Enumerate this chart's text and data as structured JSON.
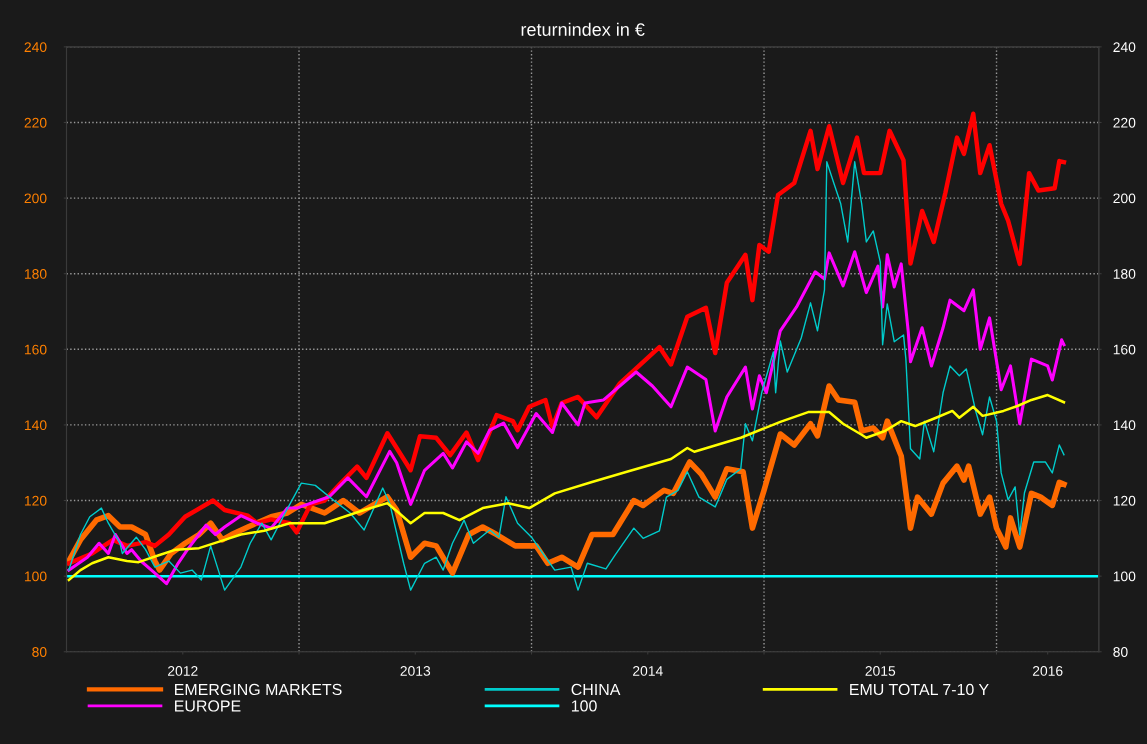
{
  "chart_data": {
    "type": "line",
    "title": "returnindex in €",
    "xlim": [
      2012,
      2016.44
    ],
    "xticks": [
      {
        "value": 2013,
        "label": null
      },
      {
        "value": 2014,
        "label": null
      },
      {
        "value": 2015,
        "label": null
      },
      {
        "value": 2016,
        "label": null
      },
      {
        "value": 2012.5,
        "label": "2012"
      },
      {
        "value": 2013.5,
        "label": "2013"
      },
      {
        "value": 2014.5,
        "label": "2014"
      },
      {
        "value": 2015.5,
        "label": "2015"
      },
      {
        "value": 2016.22,
        "label": "2016"
      }
    ],
    "ylim": [
      80,
      240
    ],
    "yticks": [
      80,
      100,
      120,
      140,
      160,
      180,
      200,
      220,
      240
    ],
    "y2lim": [
      80,
      240
    ],
    "y2ticks": [
      80,
      100,
      120,
      140,
      160,
      180,
      200,
      220,
      240
    ],
    "grid": true,
    "legend": "bottom",
    "line_style": "solid",
    "marker": "none",
    "series": [
      {
        "name": "EMERGING MARKETS",
        "color": "#ff6a00",
        "x": [
          2012.01,
          2012.06,
          2012.13,
          2012.18,
          2012.23,
          2012.28,
          2012.34,
          2012.38,
          2012.4,
          2012.45,
          2012.51,
          2012.57,
          2012.62,
          2012.67,
          2012.71,
          2012.78,
          2012.88,
          2012.95,
          2013.01,
          2013.11,
          2013.19,
          2013.26,
          2013.38,
          2013.42,
          2013.48,
          2013.54,
          2013.59,
          2013.66,
          2013.73,
          2013.79,
          2013.85,
          2013.93,
          2014.02,
          2014.07,
          2014.13,
          2014.2,
          2014.26,
          2014.35,
          2014.44,
          2014.48,
          2014.57,
          2014.61,
          2014.68,
          2014.73,
          2014.79,
          2014.84,
          2014.91,
          2014.95,
          2015.0,
          2015.07,
          2015.13,
          2015.2,
          2015.23,
          2015.28,
          2015.32,
          2015.39,
          2015.42,
          2015.47,
          2015.51,
          2015.53,
          2015.59,
          2015.63,
          2015.66,
          2015.72,
          2015.77,
          2015.83,
          2015.86,
          2015.88,
          2015.93,
          2015.97,
          2016.0,
          2016.04,
          2016.06,
          2016.1,
          2016.15,
          2016.19,
          2016.24,
          2016.27,
          2016.29
        ],
        "values": [
          104,
          109.6,
          114.9,
          116,
          113,
          113,
          111,
          104,
          101.6,
          106,
          108.7,
          111,
          114,
          109.6,
          111,
          113,
          115.7,
          116.7,
          119,
          116.7,
          120,
          116.7,
          121,
          117.5,
          105,
          108.7,
          108,
          100.8,
          111,
          113,
          111,
          108,
          108,
          103.4,
          105,
          102.4,
          111,
          111,
          120,
          118.7,
          122.7,
          121.9,
          130.2,
          127,
          120.9,
          128.4,
          127.6,
          112.7,
          122.7,
          137.6,
          134.7,
          140.3,
          137.1,
          150.3,
          146.6,
          146,
          138.4,
          139.2,
          136.6,
          141,
          131.8,
          112.7,
          120.9,
          116.4,
          124.6,
          129.1,
          125.4,
          129.1,
          116.4,
          120.9,
          112.7,
          107.7,
          115.4,
          107.7,
          121.9,
          120.9,
          118.7,
          124.8,
          124.3
        ]
      },
      {
        "name": "EUROPE",
        "color": "#ff00ff",
        "x": [
          2012.01,
          2012.09,
          2012.14,
          2012.18,
          2012.21,
          2012.26,
          2012.28,
          2012.32,
          2012.38,
          2012.43,
          2012.48,
          2012.52,
          2012.6,
          2012.64,
          2012.68,
          2012.75,
          2012.82,
          2012.88,
          2012.95,
          2012.99,
          2013.13,
          2013.21,
          2013.29,
          2013.39,
          2013.42,
          2013.48,
          2013.54,
          2013.62,
          2013.66,
          2013.72,
          2013.77,
          2013.82,
          2013.88,
          2013.94,
          2014.02,
          2014.09,
          2014.13,
          2014.2,
          2014.23,
          2014.31,
          2014.45,
          2014.52,
          2014.6,
          2014.67,
          2014.75,
          2014.79,
          2014.84,
          2014.92,
          2014.95,
          2014.98,
          2015.01,
          2015.07,
          2015.14,
          2015.22,
          2015.26,
          2015.28,
          2015.34,
          2015.39,
          2015.44,
          2015.49,
          2015.51,
          2015.53,
          2015.56,
          2015.59,
          2015.62,
          2015.63,
          2015.68,
          2015.72,
          2015.77,
          2015.8,
          2015.86,
          2015.9,
          2015.93,
          2015.97,
          2016.02,
          2016.06,
          2016.1,
          2016.15,
          2016.22,
          2016.24,
          2016.28,
          2016.29
        ],
        "values": [
          101.6,
          105,
          108.7,
          106,
          111,
          106,
          107,
          104,
          100.8,
          98,
          103.4,
          107,
          113.5,
          111,
          113,
          116,
          114,
          112.7,
          118,
          118,
          121,
          126,
          121,
          133,
          130,
          119,
          128,
          132.5,
          128.6,
          135.5,
          132.5,
          138.6,
          140.5,
          134,
          143,
          138,
          145.8,
          140,
          145.8,
          146.6,
          154,
          150.3,
          144.8,
          155.3,
          152,
          138.4,
          147.4,
          155.3,
          144.2,
          153,
          148.5,
          164.9,
          171.2,
          180.5,
          178.6,
          185.5,
          176.8,
          185.8,
          175,
          182,
          171.2,
          185,
          176.5,
          182.6,
          164.9,
          156.7,
          165.7,
          155.6,
          165.7,
          173,
          170.2,
          175.7,
          160,
          168.3,
          149.3,
          155.6,
          140.3,
          157.4,
          155.6,
          151.9,
          162.5,
          161.2
        ]
      },
      {
        "name": "CHINA",
        "color": "#00cccc",
        "x": [
          2012.01,
          2012.06,
          2012.1,
          2012.15,
          2012.18,
          2012.23,
          2012.24,
          2012.3,
          2012.34,
          2012.38,
          2012.44,
          2012.49,
          2012.54,
          2012.58,
          2012.62,
          2012.68,
          2012.75,
          2012.79,
          2012.84,
          2012.88,
          2012.94,
          2013.01,
          2013.07,
          2013.15,
          2013.22,
          2013.28,
          2013.36,
          2013.39,
          2013.45,
          2013.48,
          2013.54,
          2013.59,
          2013.62,
          2013.66,
          2013.71,
          2013.75,
          2013.82,
          2013.86,
          2013.89,
          2013.94,
          2014.0,
          2014.06,
          2014.1,
          2014.17,
          2014.2,
          2014.24,
          2014.32,
          2014.36,
          2014.44,
          2014.48,
          2014.55,
          2014.58,
          2014.63,
          2014.67,
          2014.72,
          2014.79,
          2014.84,
          2014.9,
          2014.92,
          2014.95,
          2014.99,
          2015.04,
          2015.05,
          2015.07,
          2015.1,
          2015.16,
          2015.2,
          2015.23,
          2015.26,
          2015.27,
          2015.3,
          2015.33,
          2015.36,
          2015.39,
          2015.42,
          2015.44,
          2015.47,
          2015.5,
          2015.51,
          2015.53,
          2015.56,
          2015.6,
          2015.61,
          2015.63,
          2015.67,
          2015.69,
          2015.73,
          2015.77,
          2015.8,
          2015.84,
          2015.87,
          2015.91,
          2015.94,
          2015.97,
          2016.0,
          2016.02,
          2016.05,
          2016.08,
          2016.1,
          2016.12,
          2016.16,
          2016.21,
          2016.24,
          2016.27,
          2016.29
        ],
        "values": [
          101.6,
          111,
          115.7,
          118,
          114,
          108.7,
          106,
          110.3,
          107,
          102.4,
          104,
          100.8,
          101.6,
          99,
          108,
          96.3,
          102.4,
          108.7,
          114,
          109.6,
          116.7,
          124.6,
          124,
          120,
          116.7,
          112.2,
          123.3,
          119.3,
          103.4,
          96.3,
          103.4,
          105,
          101.6,
          108.7,
          114.8,
          108.7,
          112.2,
          110.3,
          121,
          114,
          110.3,
          105,
          101.6,
          102.4,
          96.3,
          103.4,
          101.9,
          105.6,
          112.7,
          110,
          112,
          120.9,
          122.7,
          127.6,
          120.9,
          118.3,
          125.6,
          128.4,
          140.3,
          135.8,
          148.5,
          159.3,
          148.5,
          162.2,
          154,
          163,
          172.3,
          164.9,
          175.7,
          209.6,
          204,
          198.5,
          188.4,
          209.6,
          198.5,
          188.4,
          191.3,
          183.1,
          161.2,
          172,
          162,
          163.8,
          157.5,
          133.7,
          131,
          141,
          132.9,
          148.5,
          155.6,
          153,
          154.8,
          143.7,
          137.4,
          147.4,
          141,
          127.3,
          120.2,
          123.6,
          110.9,
          122,
          130.2,
          130.2,
          127.3,
          134.7,
          132.1
        ]
      },
      {
        "name": "100",
        "color": "#00ffff",
        "x": [
          2012,
          2016.44
        ],
        "values": [
          100,
          100
        ]
      },
      {
        "color": "#ff0000",
        "x": [
          2012.01,
          2012.11,
          2012.2,
          2012.26,
          2012.34,
          2012.38,
          2012.44,
          2012.51,
          2012.63,
          2012.68,
          2012.78,
          2012.82,
          2012.88,
          2012.96,
          2012.99,
          2013.05,
          2013.11,
          2013.18,
          2013.25,
          2013.29,
          2013.38,
          2013.46,
          2013.48,
          2013.52,
          2013.59,
          2013.65,
          2013.72,
          2013.77,
          2013.85,
          2013.92,
          2013.94,
          2013.99,
          2014.06,
          2014.09,
          2014.13,
          2014.2,
          2014.28,
          2014.38,
          2014.55,
          2014.6,
          2014.67,
          2014.75,
          2014.79,
          2014.84,
          2014.92,
          2014.95,
          2014.98,
          2015.02,
          2015.06,
          2015.13,
          2015.2,
          2015.23,
          2015.28,
          2015.34,
          2015.4,
          2015.43,
          2015.5,
          2015.54,
          2015.6,
          2015.63,
          2015.68,
          2015.73,
          2015.78,
          2015.83,
          2015.86,
          2015.9,
          2015.93,
          2015.97,
          2016.02,
          2016.05,
          2016.1,
          2016.14,
          2016.18,
          2016.25,
          2016.27,
          2016.29
        ],
        "values": [
          103.4,
          106,
          109.6,
          108,
          109,
          108,
          111,
          115.7,
          120,
          117.5,
          116,
          114,
          115,
          114,
          111.6,
          119,
          120,
          124.6,
          129,
          126,
          137.8,
          130,
          128,
          137,
          136.6,
          132,
          138,
          130.7,
          142.6,
          141,
          138.6,
          144.8,
          146.6,
          139.5,
          145.8,
          147.4,
          142,
          151,
          160.6,
          156,
          168.6,
          171,
          159,
          177.6,
          185,
          173,
          187.6,
          185.8,
          200.8,
          204,
          217.8,
          207.7,
          219,
          204,
          216,
          206.6,
          206.6,
          217.8,
          210,
          182.7,
          196.6,
          188.4,
          201.4,
          216,
          211.7,
          222.3,
          206.6,
          214,
          198.5,
          194,
          182.6,
          206.6,
          202,
          202.6,
          209.8,
          209.5
        ]
      },
      {
        "name": "EMU TOTAL 7-10 Y",
        "color": "#ffff00",
        "x": [
          2012.01,
          2012.06,
          2012.11,
          2012.18,
          2012.26,
          2012.31,
          2012.4,
          2012.47,
          2012.57,
          2012.68,
          2012.75,
          2012.85,
          2012.96,
          2013.11,
          2013.28,
          2013.38,
          2013.43,
          2013.48,
          2013.54,
          2013.62,
          2013.69,
          2013.79,
          2013.9,
          2013.99,
          2014.1,
          2014.26,
          2014.41,
          2014.6,
          2014.67,
          2014.7,
          2014.9,
          2015.07,
          2015.19,
          2015.28,
          2015.34,
          2015.42,
          2015.44,
          2015.52,
          2015.59,
          2015.65,
          2015.74,
          2015.81,
          2015.84,
          2015.9,
          2015.94,
          2016.03,
          2016.09,
          2016.15,
          2016.22,
          2016.29
        ],
        "values": [
          99,
          101.6,
          103.4,
          105,
          104,
          103.7,
          105.6,
          107,
          107.4,
          109.6,
          111,
          112,
          114,
          114,
          117.5,
          119.3,
          116.7,
          114,
          116.7,
          116.7,
          114.8,
          118,
          119.3,
          118,
          121.9,
          124.9,
          127.6,
          131,
          133.9,
          132.9,
          136.6,
          140.8,
          143.4,
          143.4,
          140.3,
          137.4,
          136.6,
          138.4,
          141,
          139.7,
          141.9,
          143.7,
          141.9,
          144.8,
          142.4,
          143.7,
          145,
          146.6,
          147.9,
          146
        ]
      }
    ]
  }
}
